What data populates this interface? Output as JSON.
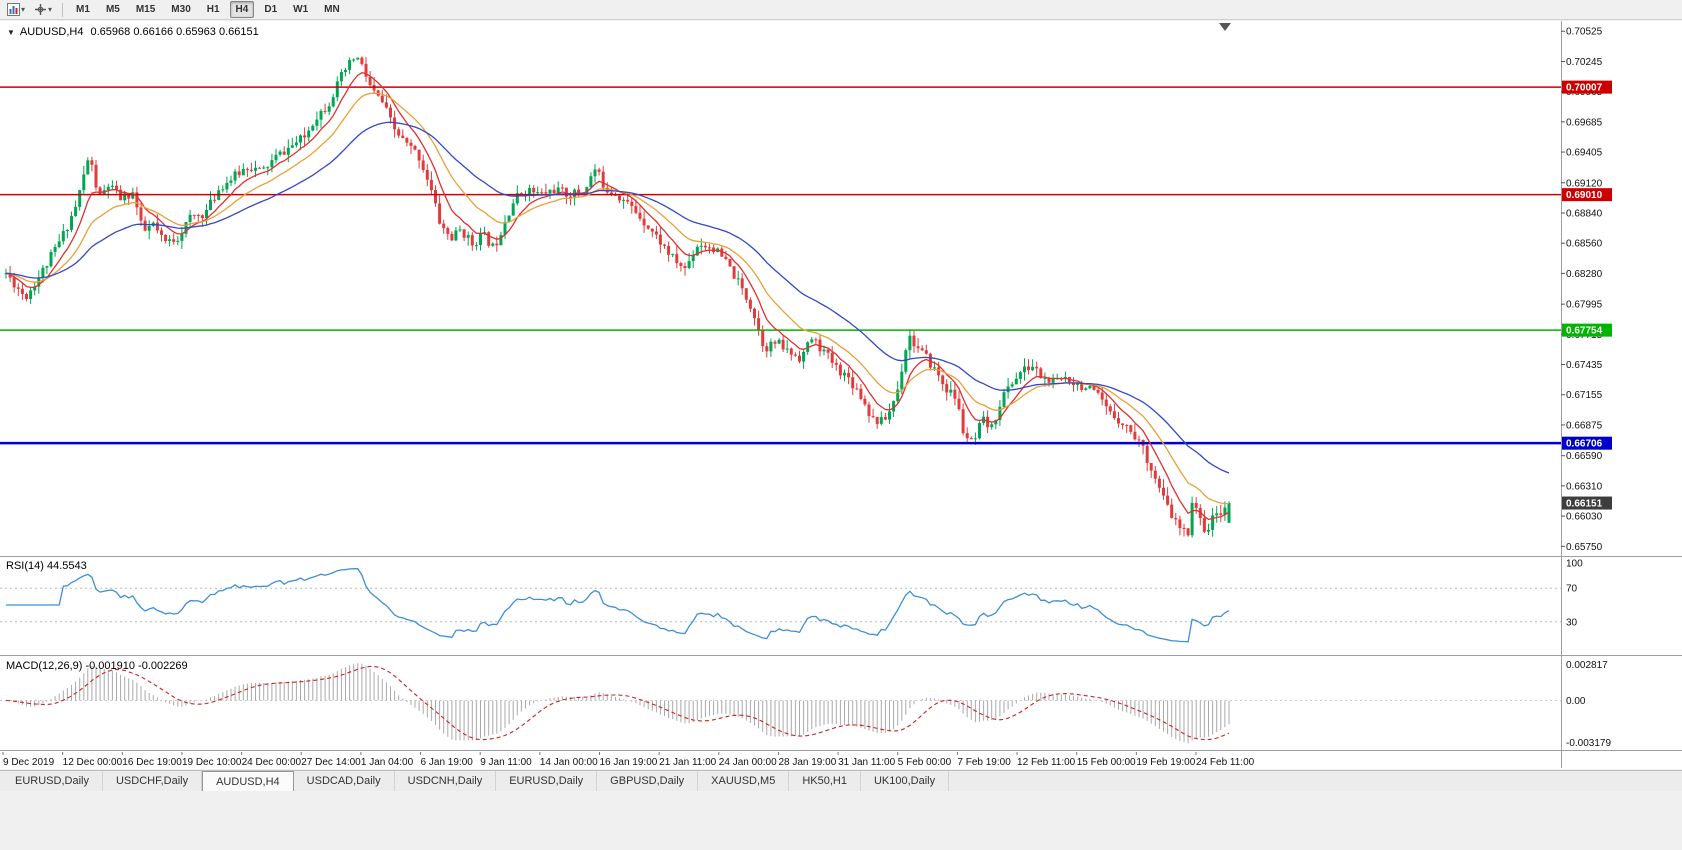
{
  "toolbar": {
    "timeframes": [
      "M1",
      "M5",
      "M15",
      "M30",
      "H1",
      "H4",
      "D1",
      "W1",
      "MN"
    ],
    "active_timeframe": "H4"
  },
  "chart": {
    "arrow": "▼",
    "symbol_tf": "AUDUSD,H4",
    "ohlc": "0.65968 0.66166 0.65963 0.66151"
  },
  "price_axis": {
    "ticks": [
      "0.70525",
      "0.70245",
      "0.69965",
      "0.69685",
      "0.69405",
      "0.69120",
      "0.68840",
      "0.68560",
      "0.68280",
      "0.67995",
      "0.67715",
      "0.67435",
      "0.67155",
      "0.66875",
      "0.66590",
      "0.66310",
      "0.66030",
      "0.65750"
    ],
    "current_badge": {
      "label": "0.66151",
      "color": "#3d3d3d"
    }
  },
  "chart_data": {
    "type": "candlestick",
    "symbol": "AUDUSD",
    "timeframe": "H4",
    "title": "AUDUSD,H4 0.65968 0.66166 0.65963 0.66151",
    "current_bar": {
      "open": 0.65968,
      "high": 0.66166,
      "low": 0.65963,
      "close": 0.66151
    },
    "y_range": [
      0.6566,
      0.7062
    ],
    "num_candles": 300,
    "render_seed": 11,
    "candle_up_color": "#00a651",
    "candle_down_color": "#e23b3b",
    "price_keyframes": [
      [
        0.0,
        0.6828
      ],
      [
        0.016,
        0.6806
      ],
      [
        0.033,
        0.6836
      ],
      [
        0.046,
        0.6862
      ],
      [
        0.057,
        0.689
      ],
      [
        0.068,
        0.6938
      ],
      [
        0.076,
        0.6897
      ],
      [
        0.084,
        0.691
      ],
      [
        0.094,
        0.6897
      ],
      [
        0.104,
        0.6903
      ],
      [
        0.112,
        0.6865
      ],
      [
        0.12,
        0.6874
      ],
      [
        0.129,
        0.6856
      ],
      [
        0.14,
        0.6861
      ],
      [
        0.151,
        0.688
      ],
      [
        0.163,
        0.6884
      ],
      [
        0.175,
        0.6908
      ],
      [
        0.187,
        0.6918
      ],
      [
        0.198,
        0.6928
      ],
      [
        0.209,
        0.6922
      ],
      [
        0.221,
        0.6936
      ],
      [
        0.232,
        0.6945
      ],
      [
        0.244,
        0.6954
      ],
      [
        0.253,
        0.6973
      ],
      [
        0.263,
        0.6984
      ],
      [
        0.275,
        0.7012
      ],
      [
        0.286,
        0.703
      ],
      [
        0.291,
        0.702
      ],
      [
        0.299,
        0.6998
      ],
      [
        0.308,
        0.6986
      ],
      [
        0.317,
        0.6962
      ],
      [
        0.327,
        0.6948
      ],
      [
        0.337,
        0.6938
      ],
      [
        0.346,
        0.6912
      ],
      [
        0.355,
        0.6874
      ],
      [
        0.364,
        0.686
      ],
      [
        0.372,
        0.6869
      ],
      [
        0.381,
        0.6855
      ],
      [
        0.39,
        0.6864
      ],
      [
        0.399,
        0.6851
      ],
      [
        0.408,
        0.6878
      ],
      [
        0.416,
        0.6897
      ],
      [
        0.425,
        0.6906
      ],
      [
        0.437,
        0.6901
      ],
      [
        0.449,
        0.6906
      ],
      [
        0.46,
        0.6901
      ],
      [
        0.472,
        0.6904
      ],
      [
        0.482,
        0.6925
      ],
      [
        0.49,
        0.6907
      ],
      [
        0.499,
        0.6902
      ],
      [
        0.508,
        0.6893
      ],
      [
        0.517,
        0.6883
      ],
      [
        0.527,
        0.6869
      ],
      [
        0.536,
        0.6856
      ],
      [
        0.545,
        0.6842
      ],
      [
        0.555,
        0.6832
      ],
      [
        0.566,
        0.6856
      ],
      [
        0.578,
        0.6852
      ],
      [
        0.589,
        0.6838
      ],
      [
        0.601,
        0.6815
      ],
      [
        0.61,
        0.6796
      ],
      [
        0.62,
        0.6759
      ],
      [
        0.63,
        0.6764
      ],
      [
        0.64,
        0.6755
      ],
      [
        0.65,
        0.675
      ],
      [
        0.659,
        0.6768
      ],
      [
        0.669,
        0.6755
      ],
      [
        0.679,
        0.6741
      ],
      [
        0.689,
        0.6731
      ],
      [
        0.698,
        0.6717
      ],
      [
        0.708,
        0.6694
      ],
      [
        0.715,
        0.669
      ],
      [
        0.721,
        0.6696
      ],
      [
        0.729,
        0.672
      ],
      [
        0.738,
        0.6772
      ],
      [
        0.744,
        0.676
      ],
      [
        0.752,
        0.675
      ],
      [
        0.76,
        0.6738
      ],
      [
        0.768,
        0.6722
      ],
      [
        0.777,
        0.6712
      ],
      [
        0.783,
        0.668
      ],
      [
        0.791,
        0.6668
      ],
      [
        0.798,
        0.6692
      ],
      [
        0.806,
        0.6684
      ],
      [
        0.814,
        0.6712
      ],
      [
        0.822,
        0.6726
      ],
      [
        0.83,
        0.6737
      ],
      [
        0.84,
        0.6742
      ],
      [
        0.848,
        0.673
      ],
      [
        0.858,
        0.6726
      ],
      [
        0.866,
        0.6732
      ],
      [
        0.876,
        0.6726
      ],
      [
        0.886,
        0.672
      ],
      [
        0.894,
        0.6712
      ],
      [
        0.902,
        0.6698
      ],
      [
        0.91,
        0.6693
      ],
      [
        0.918,
        0.6684
      ],
      [
        0.927,
        0.6672
      ],
      [
        0.935,
        0.6652
      ],
      [
        0.943,
        0.6628
      ],
      [
        0.951,
        0.6608
      ],
      [
        0.959,
        0.6592
      ],
      [
        0.966,
        0.6585
      ],
      [
        0.971,
        0.6625
      ],
      [
        0.976,
        0.6598
      ],
      [
        0.982,
        0.659
      ],
      [
        0.989,
        0.6604
      ],
      [
        0.995,
        0.661
      ],
      [
        1.0,
        0.66151
      ]
    ],
    "moving_averages": [
      {
        "name": "ma-fast",
        "period": 8,
        "color": "#e03030"
      },
      {
        "name": "ma-medium",
        "period": 18,
        "color": "#e8a13a"
      },
      {
        "name": "ma-slow",
        "period": 40,
        "color": "#3348c8"
      }
    ],
    "hlines": [
      {
        "price": 0.70007,
        "label": "0.70007",
        "color": "#cc0000",
        "width": 1.5
      },
      {
        "price": 0.6901,
        "label": "0.69010",
        "color": "#cc0000",
        "width": 1.5
      },
      {
        "price": 0.67754,
        "label": "0.67754",
        "color": "#00b400",
        "width": 1.5
      },
      {
        "price": 0.66706,
        "label": "0.66706",
        "color": "#0000cc",
        "width": 2.5
      }
    ],
    "rsi": {
      "period": 14,
      "label": "RSI(14) 44.5543",
      "value": "44.5543",
      "levels": [
        70,
        30
      ],
      "color": "#3e8fd8",
      "axis_labels": [
        "100",
        "70",
        "30"
      ]
    },
    "macd": {
      "fast": 12,
      "slow": 26,
      "signal": 9,
      "label": "MACD(12,26,9) -0.001910 -0.002269",
      "values": "-0.001910 -0.002269",
      "hist_color": "#a9a9a9",
      "signal_color": "#cc2222",
      "axis_labels": [
        "0.002817",
        "0.00",
        "-0.003179"
      ]
    }
  },
  "time_axis": {
    "labels": [
      "9 Dec 2019",
      "12 Dec 00:00",
      "16 Dec 19:00",
      "19 Dec 10:00",
      "24 Dec 00:00",
      "27 Dec 14:00",
      "1 Jan 04:00",
      "6 Jan 19:00",
      "9 Jan 11:00",
      "14 Jan 00:00",
      "16 Jan 19:00",
      "21 Jan 11:00",
      "24 Jan 00:00",
      "28 Jan 19:00",
      "31 Jan 11:00",
      "5 Feb 00:00",
      "7 Feb 19:00",
      "12 Feb 11:00",
      "15 Feb 00:00",
      "19 Feb 19:00",
      "24 Feb 11:00"
    ]
  },
  "tabs": {
    "items": [
      "EURUSD,Daily",
      "USDCHF,Daily",
      "AUDUSD,H4",
      "USDCAD,Daily",
      "USDCNH,Daily",
      "EURUSD,Daily",
      "GBPUSD,Daily",
      "XAUUSD,M5",
      "HK50,H1",
      "UK100,Daily"
    ],
    "active_index": 2
  }
}
